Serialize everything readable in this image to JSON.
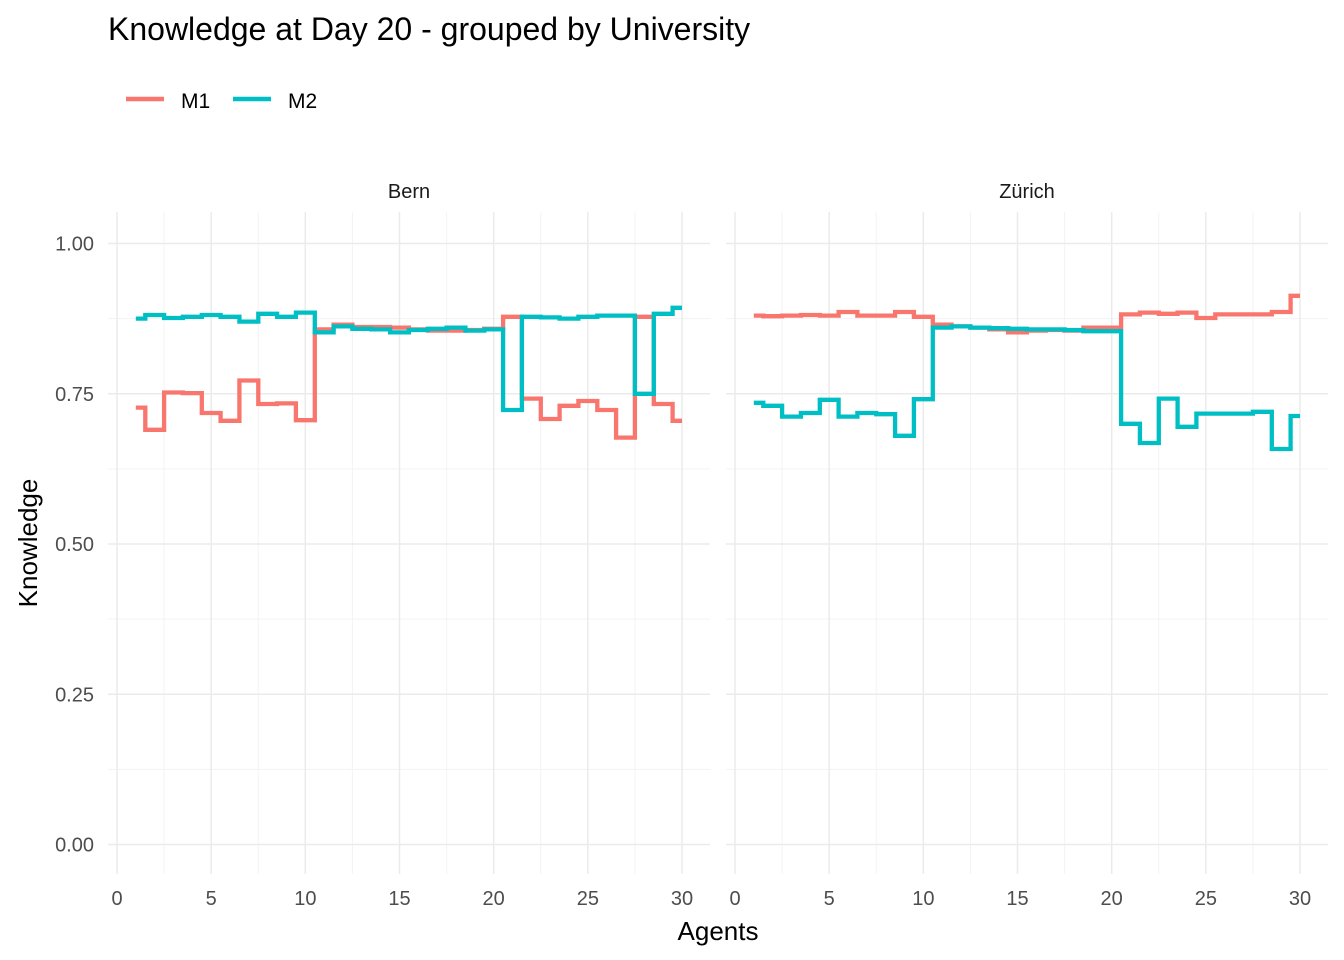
{
  "chart_data": {
    "type": "line",
    "subtype": "step",
    "title": "Knowledge at Day 20 - grouped by University",
    "xlabel": "Agents",
    "ylabel": "Knowledge",
    "xlim": [
      0,
      30
    ],
    "ylim": [
      0,
      1
    ],
    "x_ticks": [
      "0",
      "5",
      "10",
      "15",
      "20",
      "25",
      "30"
    ],
    "x_tick_values": [
      0,
      5,
      10,
      15,
      20,
      25,
      30
    ],
    "y_ticks": [
      "0.00",
      "0.25",
      "0.50",
      "0.75",
      "1.00"
    ],
    "y_tick_values": [
      0,
      0.25,
      0.5,
      0.75,
      1.0
    ],
    "grid": true,
    "legend_position": "top-left",
    "legend": [
      {
        "name": "M1",
        "color": "#F8766D"
      },
      {
        "name": "M2",
        "color": "#00BFC4"
      }
    ],
    "x": [
      1,
      2,
      3,
      4,
      5,
      6,
      7,
      8,
      9,
      10,
      11,
      12,
      13,
      14,
      15,
      16,
      17,
      18,
      19,
      20,
      21,
      22,
      23,
      24,
      25,
      26,
      27,
      28,
      29,
      30
    ],
    "panels": [
      {
        "strip": "Bern",
        "series": [
          {
            "name": "M1",
            "color": "#F8766D",
            "values": [
              0.727,
              0.69,
              0.752,
              0.751,
              0.718,
              0.705,
              0.772,
              0.733,
              0.734,
              0.706,
              0.857,
              0.865,
              0.861,
              0.861,
              0.86,
              0.857,
              0.855,
              0.855,
              0.856,
              0.858,
              0.878,
              0.742,
              0.708,
              0.73,
              0.738,
              0.723,
              0.677,
              0.878,
              0.733,
              0.705
            ]
          },
          {
            "name": "M2",
            "color": "#00BFC4",
            "values": [
              0.875,
              0.881,
              0.876,
              0.878,
              0.881,
              0.878,
              0.87,
              0.883,
              0.878,
              0.885,
              0.852,
              0.862,
              0.858,
              0.857,
              0.852,
              0.856,
              0.858,
              0.86,
              0.855,
              0.857,
              0.723,
              0.878,
              0.877,
              0.875,
              0.878,
              0.88,
              0.88,
              0.75,
              0.883,
              0.893
            ]
          }
        ]
      },
      {
        "strip": "Zürich",
        "series": [
          {
            "name": "M1",
            "color": "#F8766D",
            "values": [
              0.88,
              0.879,
              0.88,
              0.881,
              0.88,
              0.886,
              0.88,
              0.88,
              0.886,
              0.878,
              0.865,
              0.862,
              0.86,
              0.857,
              0.852,
              0.855,
              0.856,
              0.855,
              0.86,
              0.86,
              0.882,
              0.885,
              0.883,
              0.885,
              0.876,
              0.882,
              0.882,
              0.882,
              0.886,
              0.913
            ]
          },
          {
            "name": "M2",
            "color": "#00BFC4",
            "values": [
              0.735,
              0.73,
              0.712,
              0.718,
              0.74,
              0.712,
              0.718,
              0.716,
              0.68,
              0.741,
              0.86,
              0.862,
              0.86,
              0.859,
              0.858,
              0.857,
              0.857,
              0.856,
              0.854,
              0.854,
              0.7,
              0.668,
              0.742,
              0.695,
              0.717,
              0.717,
              0.717,
              0.72,
              0.658,
              0.713
            ]
          }
        ]
      }
    ]
  }
}
